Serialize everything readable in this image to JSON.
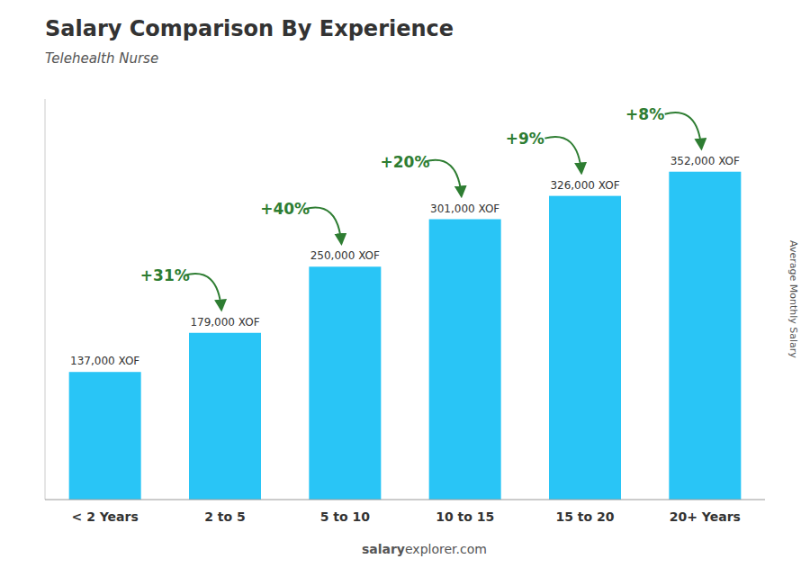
{
  "chart_data": {
    "type": "bar",
    "title": "Salary Comparison By Experience",
    "subtitle": "Telehealth Nurse",
    "ylabel": "Average Monthly Salary",
    "categories": [
      "< 2 Years",
      "2 to 5",
      "5 to 10",
      "10 to 15",
      "15 to 20",
      "20+ Years"
    ],
    "values": [
      137000,
      179000,
      250000,
      301000,
      326000,
      352000
    ],
    "value_labels": [
      "137,000 XOF",
      "179,000 XOF",
      "250,000 XOF",
      "301,000 XOF",
      "326,000 XOF",
      "352,000 XOF"
    ],
    "data_labels": true,
    "annotations": [
      null,
      "+31%",
      "+40%",
      "+20%",
      "+9%",
      "+8%"
    ],
    "watermark": [
      "salary",
      "explorer.com"
    ],
    "color": "#29C5F6",
    "ylim": [
      0,
      430000
    ],
    "tick_labels": "x",
    "grid": false
  }
}
